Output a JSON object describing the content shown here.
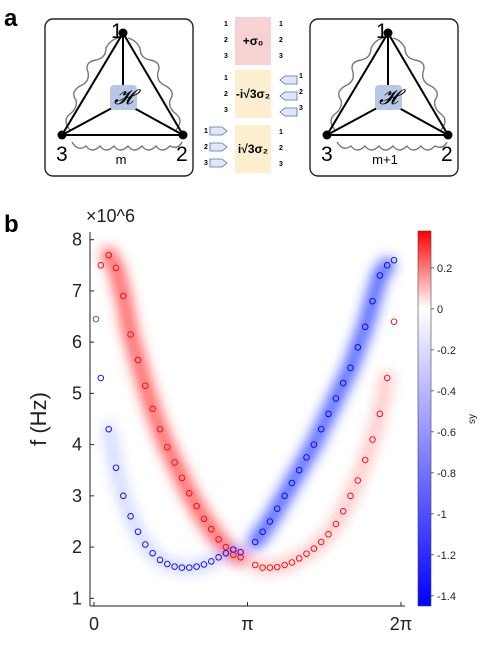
{
  "panel_a": {
    "letter": "a",
    "left_cell": {
      "node_top": "1",
      "node_left": "3",
      "node_right": "2",
      "hamiltonian": "𝓗",
      "label": "m"
    },
    "right_cell": {
      "node_top": "1",
      "node_left": "3",
      "node_right": "2",
      "hamiltonian": "𝓗",
      "label": "m+1"
    },
    "operators": [
      {
        "label": "+σ₀",
        "color": "#f7d2d2"
      },
      {
        "label": "-i√3σ₂",
        "color": "#fbefcf"
      },
      {
        "label": "i√3σ₂",
        "color": "#fbefcf"
      }
    ],
    "ports": [
      "1",
      "2",
      "3"
    ]
  },
  "panel_b": {
    "letter": "b"
  },
  "colors": {
    "positive": "#ff0000",
    "negative": "#0000ff",
    "cell_border": "#222222",
    "hamiltonian_box": "#b7c7e6"
  },
  "chart_data": {
    "type": "heatmap",
    "ylabel": "f (Hz)",
    "y_exponent": "×10^6",
    "x_ticks": [
      "0",
      "π",
      "2π"
    ],
    "y_ticks": [
      "1",
      "2",
      "3",
      "4",
      "5",
      "6",
      "7",
      "8"
    ],
    "xlim": [
      0,
      6.2832
    ],
    "ylim": [
      0.85,
      8.15
    ],
    "colorbar": {
      "label": "sy",
      "range": [
        -1.45,
        0.38
      ],
      "ticks": [
        "0.2",
        "0",
        "-0.2",
        "-0.4",
        "-0.6",
        "-0.8",
        "-1",
        "-1.2",
        "-1.4"
      ]
    },
    "series": [
      {
        "marker": "circle",
        "color": "#0000ff",
        "x": [
          0.14,
          0.3,
          0.45,
          0.6,
          0.75,
          0.9,
          1.05,
          1.2,
          1.35,
          1.5,
          1.65,
          1.8,
          1.95,
          2.1,
          2.25,
          2.4,
          2.55,
          2.7,
          2.85,
          3.0,
          3.3,
          3.45,
          3.6,
          3.75,
          3.9,
          4.05,
          4.2,
          4.35,
          4.5,
          4.65,
          4.8,
          4.95,
          5.1,
          5.25,
          5.4,
          5.55,
          5.7,
          5.85,
          6.0,
          6.14
        ],
        "y": [
          5.3,
          4.3,
          3.55,
          3.0,
          2.6,
          2.3,
          2.05,
          1.88,
          1.75,
          1.67,
          1.62,
          1.6,
          1.6,
          1.62,
          1.66,
          1.72,
          1.8,
          1.88,
          1.95,
          1.9,
          2.1,
          2.3,
          2.5,
          2.75,
          3.0,
          3.25,
          3.5,
          3.75,
          4.0,
          4.3,
          4.6,
          4.9,
          5.2,
          5.5,
          5.9,
          6.3,
          6.8,
          7.3,
          7.5,
          7.6
        ]
      },
      {
        "marker": "circle",
        "color": "#ff0000",
        "x": [
          0.14,
          0.3,
          0.45,
          0.6,
          0.75,
          0.9,
          1.05,
          1.2,
          1.35,
          1.5,
          1.65,
          1.8,
          1.95,
          2.1,
          2.25,
          2.4,
          2.55,
          2.7,
          2.85,
          3.0,
          3.3,
          3.45,
          3.6,
          3.75,
          3.9,
          4.05,
          4.2,
          4.35,
          4.5,
          4.65,
          4.8,
          4.95,
          5.1,
          5.25,
          5.4,
          5.55,
          5.7,
          5.85,
          6.0,
          6.14
        ],
        "y": [
          7.5,
          7.7,
          7.45,
          6.9,
          6.15,
          5.65,
          5.15,
          4.7,
          4.3,
          3.95,
          3.65,
          3.35,
          3.05,
          2.8,
          2.55,
          2.35,
          2.15,
          2.0,
          1.85,
          1.8,
          1.65,
          1.6,
          1.6,
          1.61,
          1.65,
          1.7,
          1.78,
          1.87,
          1.97,
          2.1,
          2.25,
          2.45,
          2.7,
          3.0,
          3.3,
          3.7,
          4.1,
          4.6,
          5.3,
          6.4
        ]
      }
    ]
  }
}
